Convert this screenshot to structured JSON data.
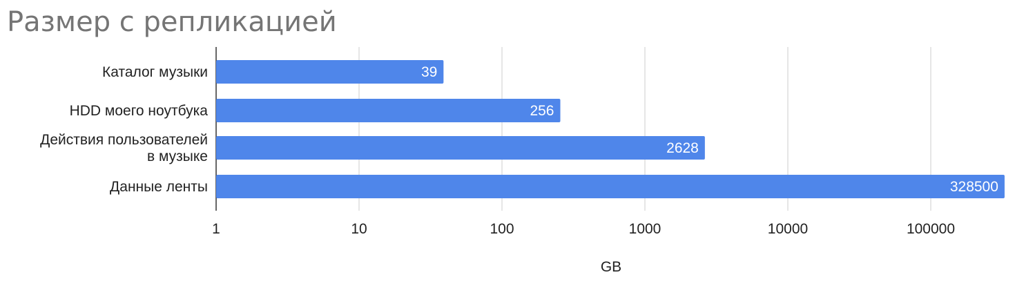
{
  "chart_data": {
    "type": "bar",
    "orientation": "horizontal",
    "title": "Размер с репликацией",
    "xlabel": "GB",
    "ylabel": "",
    "x_scale": "log",
    "xlim": [
      1,
      330000
    ],
    "x_ticks": [
      "1",
      "10",
      "100",
      "1000",
      "10000",
      "100000"
    ],
    "grid": true,
    "legend": "none",
    "categories": [
      [
        "Каталог музыки"
      ],
      [
        "HDD моего ноутбука"
      ],
      [
        "Действия пользователей",
        "в музыке"
      ],
      [
        "Данные ленты"
      ]
    ],
    "values": [
      39,
      256,
      2628,
      328500
    ],
    "data_labels": [
      "39",
      "256",
      "2628",
      "328500"
    ],
    "bar_color": "#4f86ea",
    "grid_color": "#cccccc",
    "axis_color": "#333333"
  }
}
